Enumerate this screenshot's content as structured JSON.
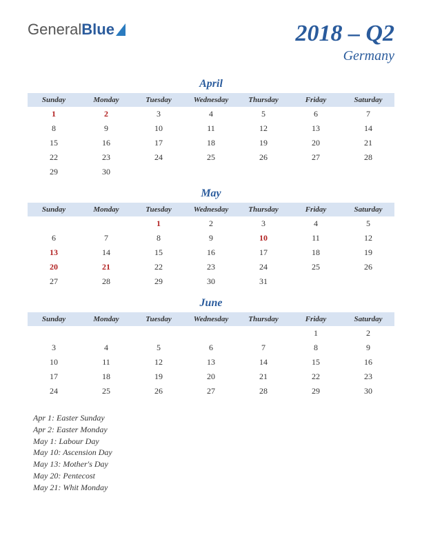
{
  "logo": {
    "general": "General",
    "blue": "Blue"
  },
  "title": {
    "period": "2018 – Q2",
    "country": "Germany"
  },
  "weekdays": [
    "Sunday",
    "Monday",
    "Tuesday",
    "Wednesday",
    "Thursday",
    "Friday",
    "Saturday"
  ],
  "months": [
    {
      "name": "April",
      "holidays": [
        1,
        2
      ],
      "weeks": [
        [
          1,
          2,
          3,
          4,
          5,
          6,
          7
        ],
        [
          8,
          9,
          10,
          11,
          12,
          13,
          14
        ],
        [
          15,
          16,
          17,
          18,
          19,
          20,
          21
        ],
        [
          22,
          23,
          24,
          25,
          26,
          27,
          28
        ],
        [
          29,
          30,
          null,
          null,
          null,
          null,
          null
        ]
      ]
    },
    {
      "name": "May",
      "holidays": [
        1,
        10,
        13,
        20,
        21
      ],
      "weeks": [
        [
          null,
          null,
          1,
          2,
          3,
          4,
          5
        ],
        [
          6,
          7,
          8,
          9,
          10,
          11,
          12
        ],
        [
          13,
          14,
          15,
          16,
          17,
          18,
          19
        ],
        [
          20,
          21,
          22,
          23,
          24,
          25,
          26
        ],
        [
          27,
          28,
          29,
          30,
          31,
          null,
          null
        ]
      ]
    },
    {
      "name": "June",
      "holidays": [],
      "weeks": [
        [
          null,
          null,
          null,
          null,
          null,
          1,
          2
        ],
        [
          3,
          4,
          5,
          6,
          7,
          8,
          9
        ],
        [
          10,
          11,
          12,
          13,
          14,
          15,
          16
        ],
        [
          17,
          18,
          19,
          20,
          21,
          22,
          23
        ],
        [
          24,
          25,
          26,
          27,
          28,
          29,
          30
        ]
      ]
    }
  ],
  "holiday_list": [
    "Apr 1: Easter Sunday",
    "Apr 2: Easter Monday",
    "May 1: Labour Day",
    "May 10: Ascension Day",
    "May 13: Mother's Day",
    "May 20: Pentecost",
    "May 21: Whit Monday"
  ],
  "colors": {
    "accent": "#2a5b9c",
    "header_bg": "#d8e3f2",
    "holiday": "#b22222",
    "text": "#333333",
    "background": "#ffffff"
  }
}
